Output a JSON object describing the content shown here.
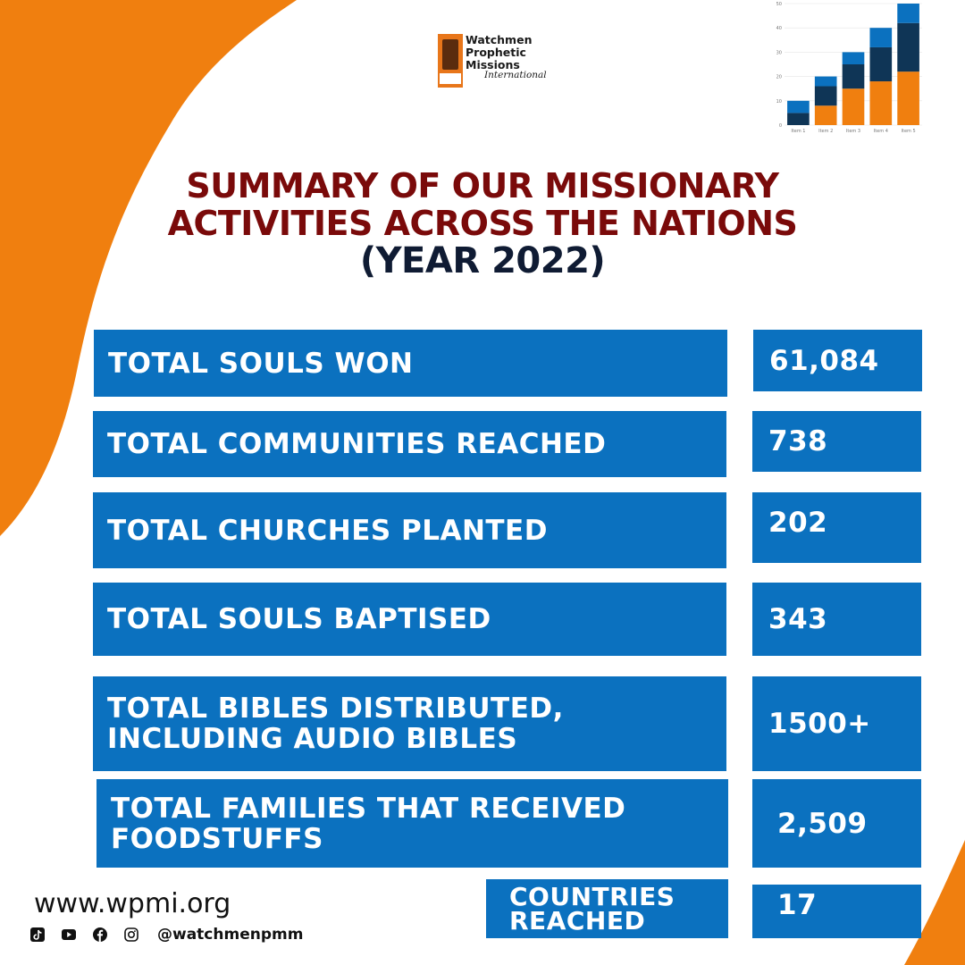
{
  "colors": {
    "orange": "#f07f0f",
    "blue": "#0b71bf",
    "maroon": "#7a0a0a",
    "navy": "#0f1b33",
    "dark_blue": "#0f3556"
  },
  "logo": {
    "name_lines": [
      "Watchmen",
      "Prophetic",
      "Missions"
    ],
    "script": "International"
  },
  "title": {
    "line1": "SUMMARY OF OUR MISSIONARY",
    "line2": "ACTIVITIES ACROSS THE NATIONS",
    "line3": "(YEAR 2022)"
  },
  "stats": [
    {
      "label": "TOTAL SOULS WON",
      "value": "61,084"
    },
    {
      "label": "TOTAL COMMUNITIES REACHED",
      "value": "738"
    },
    {
      "label": "TOTAL CHURCHES PLANTED",
      "value": "202"
    },
    {
      "label": "TOTAL SOULS BAPTISED",
      "value": "343"
    },
    {
      "label": "TOTAL BIBLES DISTRIBUTED, INCLUDING AUDIO BIBLES",
      "value": "1500+"
    },
    {
      "label": "TOTAL FAMILIES THAT RECEIVED FOODSTUFFS",
      "value": "2,509"
    },
    {
      "label": "COUNTRIES REACHED",
      "value": "17"
    }
  ],
  "footer": {
    "website": "www.wpmi.org",
    "handle": "@watchmenpmm",
    "social_icons": [
      "tiktok-icon",
      "youtube-icon",
      "facebook-icon",
      "instagram-icon"
    ]
  },
  "chart_data": {
    "type": "bar",
    "stacked": true,
    "categories": [
      "Item 1",
      "Item 2",
      "Item 3",
      "Item 4",
      "Item 5"
    ],
    "series": [
      {
        "values": [
          0,
          8,
          15,
          18,
          22
        ],
        "color": "#f07f0f"
      },
      {
        "values": [
          5,
          8,
          10,
          14,
          20
        ],
        "color": "#0f3556"
      },
      {
        "values": [
          5,
          4,
          5,
          8,
          8
        ],
        "color": "#0b71bf"
      }
    ],
    "y_ticks": [
      0,
      10,
      20,
      30,
      40,
      50
    ],
    "ylim": [
      0,
      50
    ],
    "grid": true
  }
}
